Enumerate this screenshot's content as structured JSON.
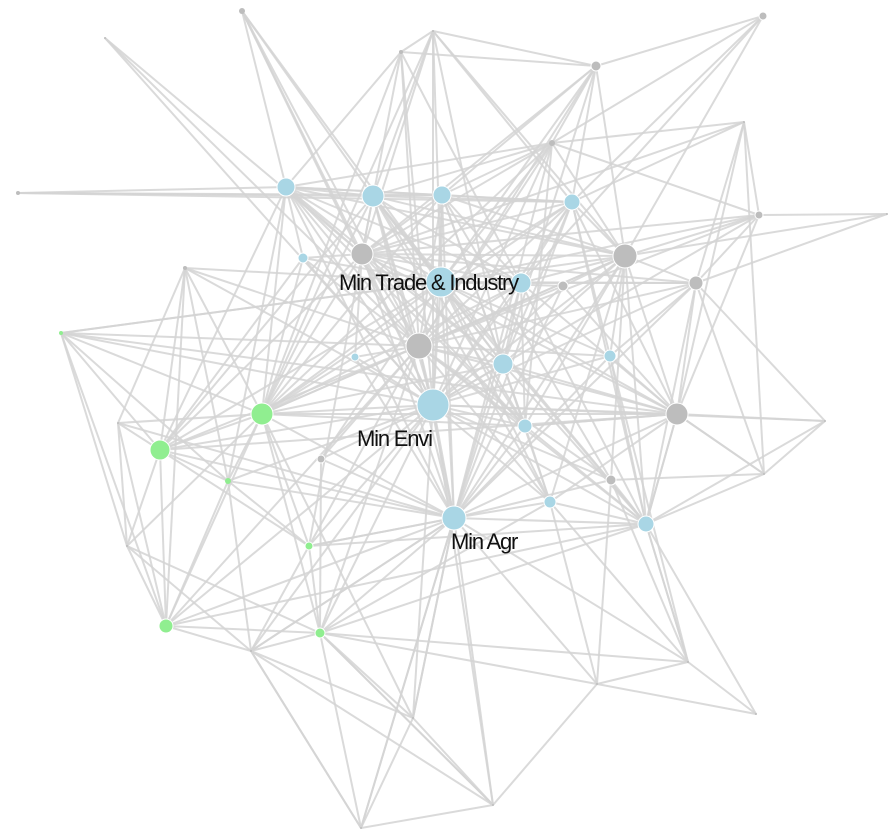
{
  "colors": {
    "edge": "#d3d3d3",
    "node_gray": "#bdbdbd",
    "node_blue": "#a9d6e5",
    "node_green": "#90ee90",
    "label_text": "#111111"
  },
  "labels": {
    "min_trade": "Min Trade & Industry",
    "min_envi": "Min Envi",
    "min_agr": "Min Agr"
  }
}
